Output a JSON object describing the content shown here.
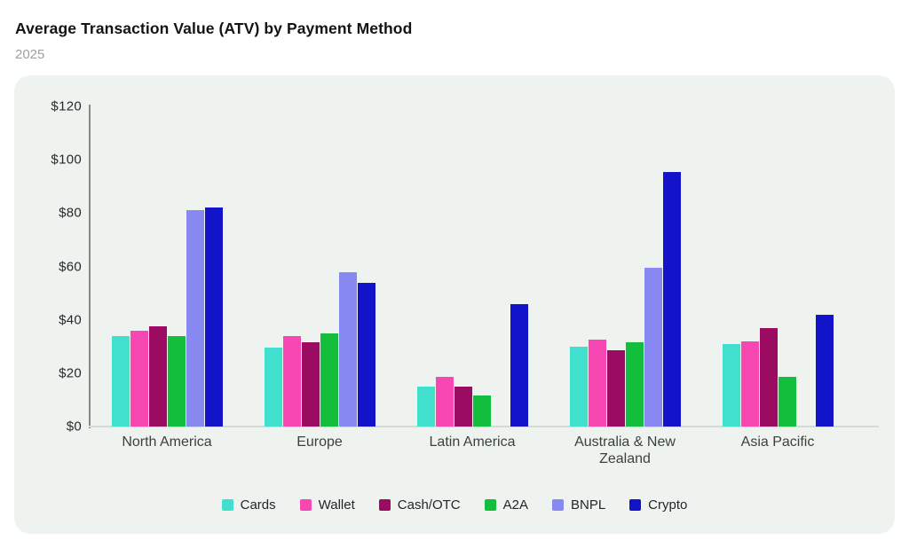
{
  "header": {
    "title": "Average Transaction Value (ATV) by Payment Method",
    "subtitle": "2025"
  },
  "chart_data": {
    "type": "bar",
    "title": "Average Transaction Value (ATV) by Payment Method",
    "subtitle": "2025",
    "categories": [
      "North America",
      "Europe",
      "Latin America",
      "Australia & New Zealand",
      "Asia Pacific"
    ],
    "series": [
      {
        "name": "Cards",
        "color": "#41e0ce",
        "values": [
          34,
          29.5,
          15,
          30,
          31
        ]
      },
      {
        "name": "Wallet",
        "color": "#f747b2",
        "values": [
          36,
          34,
          18.5,
          32.5,
          32
        ]
      },
      {
        "name": "Cash/OTC",
        "color": "#9b0b62",
        "values": [
          37.5,
          31.5,
          15,
          28.5,
          37
        ]
      },
      {
        "name": "A2A",
        "color": "#12be3c",
        "values": [
          34,
          35,
          11.5,
          31.5,
          18.5
        ]
      },
      {
        "name": "BNPL",
        "color": "#8789f0",
        "values": [
          81,
          58,
          0,
          59.5,
          0
        ]
      },
      {
        "name": "Crypto",
        "color": "#1313c9",
        "values": [
          82,
          54,
          46,
          95.5,
          42
        ]
      }
    ],
    "xlabel": "",
    "ylabel": "",
    "ylim": [
      0,
      120
    ],
    "y_ticks": [
      {
        "label": "$0",
        "value": 0
      },
      {
        "label": "$20",
        "value": 20
      },
      {
        "label": "$40",
        "value": 40
      },
      {
        "label": "$60",
        "value": 60
      },
      {
        "label": "$80",
        "value": 80
      },
      {
        "label": "$100",
        "value": 100
      },
      {
        "label": "$120",
        "value": 120
      }
    ],
    "grid": false,
    "legend_position": "bottom"
  },
  "colors": {
    "page_bg": "#ffffff",
    "card_bg": "#eef3ef",
    "title": "#131313",
    "subtitle": "#9ba19d",
    "y_axis_line": "#848986",
    "x_axis_line": "#d6dad7",
    "tick_label": "#26292b",
    "category_label": "#3b413e",
    "legend_label": "#22262a"
  }
}
